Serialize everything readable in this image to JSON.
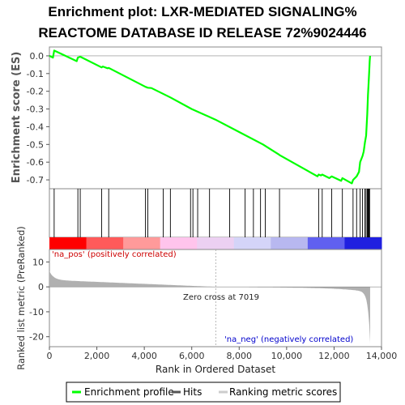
{
  "chart_data": {
    "type": "line",
    "title_line1": "Enrichment plot: LXR-MEDIATED SIGNALING%",
    "title_line2": "REACTOME DATABASE ID RELEASE 72%9024446",
    "ylabel_top": "Enrichment score (ES)",
    "ylabel_bottom": "Ranked list metric (PreRanked)",
    "xlabel": "Rank in Ordered Dataset",
    "xlim": [
      0,
      14000
    ],
    "ylim_top": [
      -0.75,
      0.05
    ],
    "ylim_bottom": [
      -24,
      15
    ],
    "x_ticks": [
      0,
      2000,
      4000,
      6000,
      8000,
      10000,
      12000,
      14000
    ],
    "x_tick_labels": [
      "0",
      "2,000",
      "4,000",
      "6,000",
      "8,000",
      "10,000",
      "12,000",
      "14,000"
    ],
    "y_ticks_top": [
      0.0,
      -0.1,
      -0.2,
      -0.3,
      -0.4,
      -0.5,
      -0.6,
      -0.7
    ],
    "y_tick_labels_top": [
      "0.0",
      "-0.1",
      "-0.2",
      "-0.3",
      "-0.4",
      "-0.5",
      "-0.6",
      "-0.7"
    ],
    "y_ticks_bottom": [
      10,
      0,
      -10,
      -20
    ],
    "y_tick_labels_bottom": [
      "10",
      "0",
      "-10",
      "-20"
    ],
    "grid": false,
    "enrichment_profile": {
      "x": [
        0,
        150,
        200,
        1150,
        1200,
        1300,
        2200,
        2250,
        2450,
        2500,
        4050,
        4150,
        4300,
        5100,
        6000,
        7000,
        8000,
        9000,
        9650,
        9700,
        11300,
        11350,
        11450,
        11500,
        11800,
        11900,
        12300,
        12350,
        12750,
        12800,
        12950,
        13050,
        13100,
        13200,
        13250,
        13300,
        13350,
        13400,
        13430,
        13450,
        13480,
        13500,
        13520
      ],
      "y": [
        0.0,
        -0.01,
        0.03,
        -0.03,
        -0.01,
        -0.005,
        -0.065,
        -0.06,
        -0.07,
        -0.068,
        -0.175,
        -0.18,
        -0.182,
        -0.235,
        -0.3,
        -0.36,
        -0.43,
        -0.5,
        -0.555,
        -0.56,
        -0.68,
        -0.67,
        -0.675,
        -0.67,
        -0.69,
        -0.68,
        -0.705,
        -0.69,
        -0.72,
        -0.7,
        -0.68,
        -0.655,
        -0.6,
        -0.565,
        -0.54,
        -0.49,
        -0.45,
        -0.33,
        -0.22,
        -0.17,
        -0.09,
        -0.03,
        0.0
      ]
    },
    "hits": [
      200,
      1200,
      1300,
      2200,
      2500,
      4050,
      4150,
      4800,
      5100,
      5950,
      6050,
      6250,
      6750,
      7600,
      8250,
      8600,
      8900,
      9100,
      9700,
      11350,
      11500,
      11900,
      12350,
      12800,
      12950,
      13100,
      13200,
      13300,
      13350,
      13400,
      13430,
      13450,
      13480,
      13500
    ],
    "zero_cross_x": 7019,
    "zero_cross_label": "Zero cross at 7019",
    "na_pos_label": "'na_pos' (positively correlated)",
    "na_neg_label": "'na_neg' (negatively correlated)",
    "legend": [
      "Enrichment profile",
      "Hits",
      "Ranking metric scores"
    ],
    "colors": {
      "profile": "#00ff00",
      "hits": "#000000",
      "metric_fill": "#b0b0b0",
      "pos_text": "#cc0000",
      "neg_text": "#0000cc"
    },
    "color_band": [
      "#ff0000",
      "#ff5a5a",
      "#ff9a9a",
      "#ffc4ec",
      "#ecd0f2",
      "#d4d4f8",
      "#b8b8f0",
      "#6060f0",
      "#2020e0"
    ]
  }
}
